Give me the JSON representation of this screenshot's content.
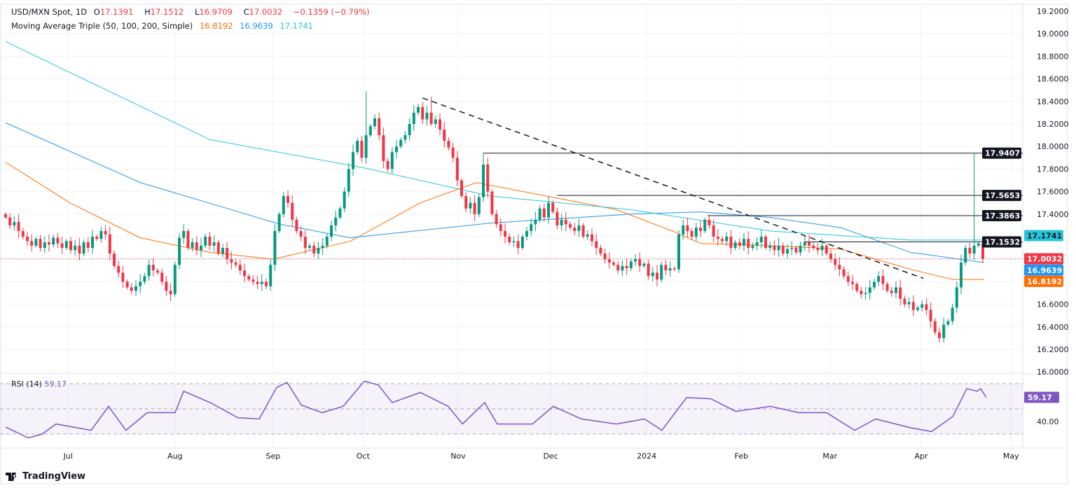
{
  "header": {
    "symbol": "USD/MXN Spot, 1D",
    "open_label": "O",
    "open": "17.1391",
    "high_label": "H",
    "high": "17.1512",
    "low_label": "L",
    "low": "16.9709",
    "close_label": "C",
    "close": "17.0032",
    "change": "−0.1359 (−0.79%)",
    "ma_title": "Moving Average Triple (50, 100, 200, Simple)",
    "ma50": "16.8192",
    "ma100": "16.9639",
    "ma200": "17.1741"
  },
  "rsi_legend": {
    "title": "RSI (14)",
    "value": "59.17"
  },
  "footer": {
    "brand": "TradingView"
  },
  "colors": {
    "up": "#089981",
    "down": "#f23645",
    "ma50": "#ff6d00",
    "ma100": "#2196f3",
    "ma200": "#26c6da",
    "rsi": "#7e57c2",
    "level": "#131722"
  },
  "chart_data": {
    "type": "candlestick",
    "title": "USD/MXN Spot, 1D",
    "ylim": [
      16.0,
      19.2
    ],
    "y_ticks": [
      "19.2000",
      "19.0000",
      "18.8000",
      "18.6000",
      "18.4000",
      "18.2000",
      "18.0000",
      "17.8000",
      "17.6000",
      "17.4000",
      "16.6000",
      "16.4000",
      "16.2000",
      "16.0000"
    ],
    "x_ticks": [
      {
        "label": "Jul",
        "i": 14.4
      },
      {
        "label": "Aug",
        "i": 39
      },
      {
        "label": "Sep",
        "i": 61.6
      },
      {
        "label": "Oct",
        "i": 82.3
      },
      {
        "label": "Nov",
        "i": 104.2
      },
      {
        "label": "Dec",
        "i": 125.5
      },
      {
        "label": "2024",
        "i": 147.6
      },
      {
        "label": "Feb",
        "i": 169.4
      },
      {
        "label": "Mar",
        "i": 189.8
      },
      {
        "label": "Apr",
        "i": 210.8
      },
      {
        "label": "May",
        "i": 231.5
      }
    ],
    "closes": [
      17.37,
      17.3,
      17.33,
      17.25,
      17.2,
      17.16,
      17.12,
      17.18,
      17.1,
      17.15,
      17.13,
      17.19,
      17.14,
      17.1,
      17.16,
      17.08,
      17.12,
      17.05,
      17.15,
      17.1,
      17.2,
      17.18,
      17.25,
      17.22,
      17.05,
      16.94,
      16.88,
      16.8,
      16.75,
      16.72,
      16.76,
      16.8,
      16.85,
      16.95,
      16.9,
      16.88,
      16.8,
      16.72,
      16.69,
      16.95,
      17.19,
      17.25,
      17.1,
      17.15,
      17.08,
      17.12,
      17.2,
      17.12,
      17.15,
      17.05,
      17.1,
      17.0,
      16.97,
      16.95,
      16.9,
      16.85,
      16.82,
      16.8,
      16.78,
      16.8,
      16.76,
      16.95,
      17.25,
      17.4,
      17.56,
      17.5,
      17.35,
      17.25,
      17.2,
      17.1,
      17.12,
      17.05,
      17.1,
      17.12,
      17.2,
      17.3,
      17.37,
      17.45,
      17.6,
      17.8,
      17.95,
      18.05,
      17.9,
      18.1,
      18.18,
      18.25,
      18.1,
      17.87,
      17.8,
      17.95,
      18.0,
      18.06,
      18.1,
      18.2,
      18.3,
      18.35,
      18.24,
      18.3,
      18.2,
      18.24,
      18.15,
      18.05,
      17.99,
      17.9,
      17.7,
      17.56,
      17.45,
      17.5,
      17.4,
      17.55,
      17.84,
      17.6,
      17.4,
      17.31,
      17.25,
      17.2,
      17.15,
      17.16,
      17.1,
      17.2,
      17.25,
      17.31,
      17.35,
      17.45,
      17.37,
      17.5,
      17.42,
      17.3,
      17.35,
      17.31,
      17.28,
      17.25,
      17.3,
      17.2,
      17.22,
      17.16,
      17.1,
      17.05,
      17.0,
      16.97,
      16.95,
      16.9,
      16.94,
      16.92,
      16.98,
      17.0,
      16.94,
      16.96,
      16.85,
      16.88,
      16.82,
      16.95,
      16.9,
      16.92,
      16.91,
      17.22,
      17.3,
      17.25,
      17.2,
      17.28,
      17.25,
      17.35,
      17.3,
      17.2,
      17.18,
      17.16,
      17.2,
      17.1,
      17.15,
      17.12,
      17.18,
      17.1,
      17.12,
      17.15,
      17.2,
      17.1,
      17.12,
      17.08,
      17.12,
      17.05,
      17.09,
      17.1,
      17.06,
      17.12,
      17.15,
      17.12,
      17.1,
      17.08,
      17.12,
      17.05,
      17.0,
      16.95,
      16.91,
      16.85,
      16.8,
      16.78,
      16.72,
      16.69,
      16.7,
      16.75,
      16.8,
      16.85,
      16.78,
      16.72,
      16.7,
      16.75,
      16.65,
      16.6,
      16.62,
      16.55,
      16.57,
      16.6,
      16.55,
      16.45,
      16.35,
      16.3,
      16.42,
      16.45,
      16.57,
      16.75,
      16.97,
      17.1,
      17.05,
      17.12,
      17.14,
      17.0032
    ],
    "wick_overrides": {
      "83": {
        "h": 18.49
      },
      "98": {
        "h": 18.44
      },
      "110": {
        "h": 17.94
      },
      "216": {
        "l": 16.26
      },
      "223": {
        "h": 17.9407
      },
      "225": {
        "o": 17.1391,
        "h": 17.1512,
        "l": 16.9709
      }
    },
    "moving_averages": [
      {
        "name": "SMA 50",
        "value": "16.8192",
        "color": "#ff6d00",
        "points": [
          [
            0,
            17.86
          ],
          [
            14.8,
            17.5
          ],
          [
            31,
            17.19
          ],
          [
            47.1,
            17.06
          ],
          [
            61.6,
            17.0
          ],
          [
            79.4,
            17.16
          ],
          [
            95.5,
            17.5
          ],
          [
            108.4,
            17.68
          ],
          [
            124.5,
            17.56
          ],
          [
            140.6,
            17.44
          ],
          [
            153.5,
            17.25
          ],
          [
            160,
            17.14
          ],
          [
            176.1,
            17.12
          ],
          [
            192.3,
            17.09
          ],
          [
            208.4,
            16.91
          ],
          [
            218,
            16.82
          ],
          [
            225.3,
            16.82
          ]
        ]
      },
      {
        "name": "SMA 100",
        "value": "16.9639",
        "color": "#2196f3",
        "points": [
          [
            0,
            18.21
          ],
          [
            31,
            17.68
          ],
          [
            63.2,
            17.31
          ],
          [
            79.4,
            17.19
          ],
          [
            111.6,
            17.32
          ],
          [
            143.9,
            17.4
          ],
          [
            160,
            17.42
          ],
          [
            176.1,
            17.37
          ],
          [
            192.3,
            17.28
          ],
          [
            208.4,
            17.06
          ],
          [
            225.3,
            16.97
          ]
        ]
      },
      {
        "name": "SMA 200",
        "value": "17.1741",
        "color": "#26c6da",
        "points": [
          [
            0,
            18.93
          ],
          [
            47.1,
            18.06
          ],
          [
            82.6,
            17.81
          ],
          [
            111.6,
            17.56
          ],
          [
            143.9,
            17.44
          ],
          [
            176.1,
            17.25
          ],
          [
            208.4,
            17.17
          ],
          [
            225.3,
            17.17
          ]
        ]
      }
    ],
    "trendline": [
      [
        96,
        18.43
      ],
      [
        211.3,
        16.83
      ]
    ],
    "levels": [
      {
        "value": "17.9407",
        "from": 110
      },
      {
        "value": "17.5653",
        "from": 127
      },
      {
        "value": "17.3863",
        "from": 161.6
      },
      {
        "value": "17.1532",
        "from": 184
      }
    ],
    "last_price": "17.0032",
    "rsi": {
      "title": "RSI (14)",
      "value": "59.17",
      "bands": [
        30,
        70
      ],
      "tick": "40.00",
      "points": [
        [
          0,
          35.6
        ],
        [
          5.2,
          27
        ],
        [
          8.4,
          30
        ],
        [
          11.6,
          38
        ],
        [
          19.7,
          33
        ],
        [
          23.7,
          52
        ],
        [
          27.7,
          33
        ],
        [
          32.6,
          47
        ],
        [
          39,
          47
        ],
        [
          41,
          64
        ],
        [
          47.1,
          55
        ],
        [
          53.5,
          43
        ],
        [
          58.4,
          42
        ],
        [
          62.4,
          67
        ],
        [
          64.8,
          71
        ],
        [
          68.1,
          53
        ],
        [
          72.9,
          47
        ],
        [
          77.7,
          52
        ],
        [
          82.6,
          72
        ],
        [
          85.8,
          69
        ],
        [
          89,
          55
        ],
        [
          95.5,
          63
        ],
        [
          101.9,
          52
        ],
        [
          105.2,
          38
        ],
        [
          110.3,
          55
        ],
        [
          113.2,
          38
        ],
        [
          121.3,
          38
        ],
        [
          126.1,
          52
        ],
        [
          132.6,
          42
        ],
        [
          140.6,
          38
        ],
        [
          147.1,
          42
        ],
        [
          151.1,
          33
        ],
        [
          156.8,
          59
        ],
        [
          162.4,
          58
        ],
        [
          168.1,
          48
        ],
        [
          176.1,
          52
        ],
        [
          182.6,
          47
        ],
        [
          189,
          47
        ],
        [
          195.5,
          33
        ],
        [
          200.3,
          42
        ],
        [
          208.4,
          35
        ],
        [
          213.2,
          32
        ],
        [
          218.1,
          44
        ],
        [
          221.3,
          66
        ],
        [
          223.7,
          64
        ],
        [
          224.5,
          66
        ],
        [
          225.8,
          59.17
        ]
      ]
    }
  }
}
